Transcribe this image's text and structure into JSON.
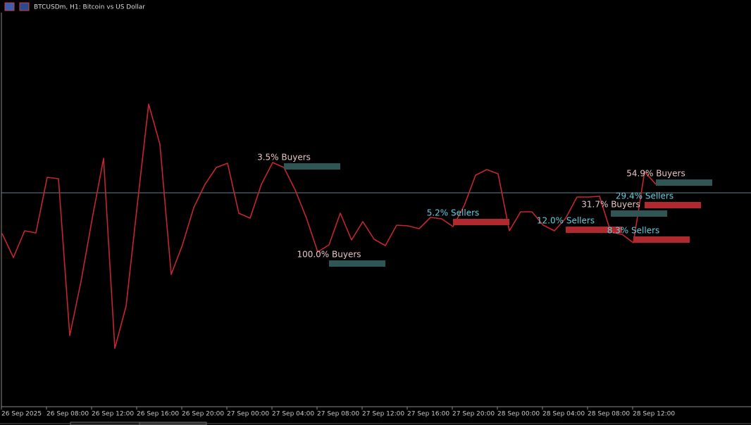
{
  "chart_data": {
    "type": "line",
    "title": "BTCUSDm, H1:  Bitcoin vs US Dollar",
    "categories": [
      "26 Sep 2025",
      null,
      null,
      null,
      "26 Sep 08:00",
      null,
      null,
      null,
      "26 Sep 12:00",
      null,
      null,
      null,
      "26 Sep 16:00",
      null,
      null,
      null,
      "26 Sep 20:00",
      null,
      null,
      null,
      "27 Sep 00:00",
      null,
      null,
      null,
      "27 Sep 04:00",
      null,
      null,
      null,
      "27 Sep 08:00",
      null,
      null,
      null,
      "27 Sep 12:00",
      null,
      null,
      null,
      "27 Sep 16:00",
      null,
      null,
      null,
      "27 Sep 20:00",
      null,
      null,
      null,
      "28 Sep 00:00",
      null,
      null,
      null,
      "28 Sep 04:00",
      null,
      null,
      null,
      "28 Sep 08:00",
      null,
      null,
      null,
      "28 Sep 12:00",
      null,
      null
    ],
    "series": [
      {
        "name": "BTCUSDm",
        "color": "#c4262e",
        "values": [
          248,
          214,
          252,
          249,
          328,
          326,
          103,
          180,
          270,
          355,
          85,
          145,
          290,
          432,
          375,
          190,
          232,
          285,
          318,
          342,
          348,
          277,
          270,
          318,
          349,
          342,
          310,
          270,
          222,
          232,
          277,
          239,
          265,
          240,
          231,
          260,
          259,
          255,
          271,
          269,
          258,
          288,
          331,
          339,
          333,
          252,
          279,
          279,
          260,
          252,
          270,
          300,
          300,
          301,
          250,
          247,
          235,
          336,
          318
        ]
      }
    ],
    "current_price": 306,
    "current_price_color": "#5f7f8f",
    "ylim": [
      0,
      580
    ],
    "annotations": [
      {
        "text": "3.5% Buyers",
        "at_index": 25,
        "price": 344,
        "color": "#2f5555",
        "text_color": "#e6c4c4"
      },
      {
        "text": "100.0% Buyers",
        "at_index": 29,
        "price": 206,
        "color": "#2f5555",
        "text_color": "#e6c4c4"
      },
      {
        "text": "5.2% Sellers",
        "at_index": 40,
        "price": 265,
        "color": "#b0292f",
        "text_color": "#5fd0e0"
      },
      {
        "text": "12.0% Sellers",
        "at_index": 50,
        "price": 254,
        "color": "#b0292f",
        "text_color": "#5fd0e0"
      },
      {
        "text": "31.7% Buyers",
        "at_index": 54,
        "price": 277,
        "color": "#2f5555",
        "text_color": "#e6c4c4"
      },
      {
        "text": "29.4% Sellers",
        "at_index": 57,
        "price": 289,
        "color": "#b0292f",
        "text_color": "#5fd0e0"
      },
      {
        "text": "8.3% Sellers",
        "at_index": 56,
        "price": 240,
        "color": "#b0292f",
        "text_color": "#5fd0e0"
      },
      {
        "text": "54.9% Buyers",
        "at_index": 58,
        "price": 321,
        "color": "#2f5555",
        "text_color": "#e6c4c4"
      }
    ]
  }
}
